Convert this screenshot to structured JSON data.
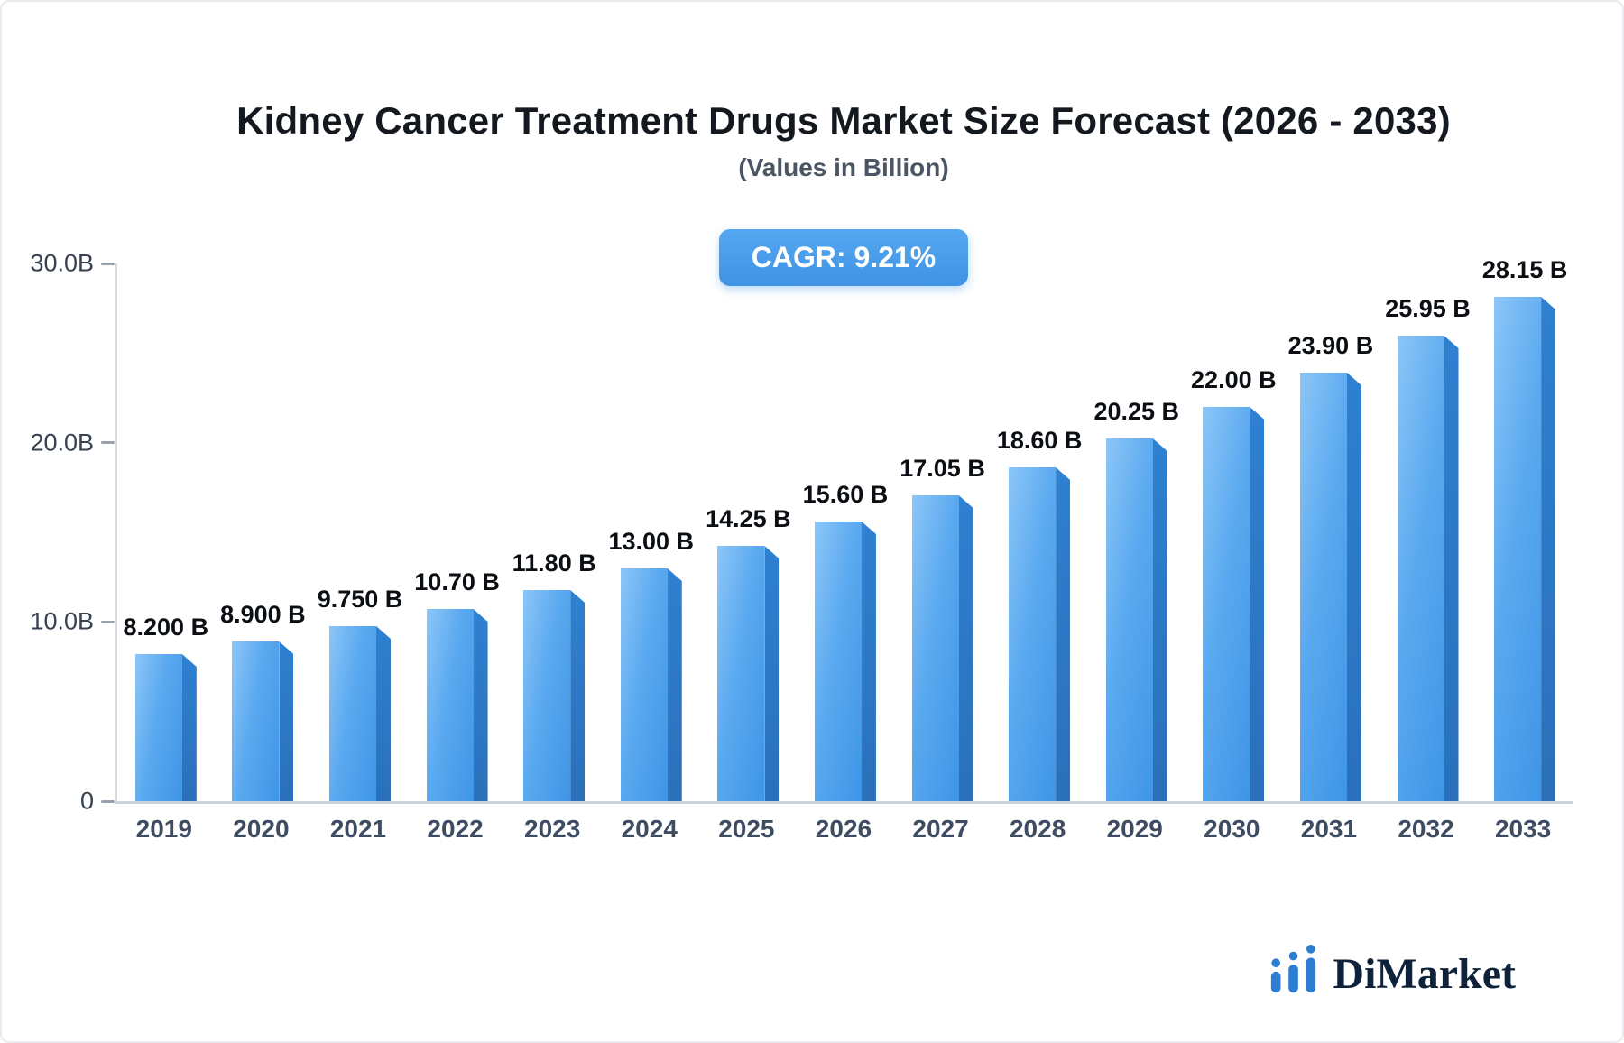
{
  "title": "Kidney Cancer Treatment Drugs Market Size Forecast (2026 - 2033)",
  "subtitle": "(Values in Billion)",
  "cagr_badge": "CAGR: 9.21%",
  "brand": {
    "name": "DiMarket"
  },
  "colors": {
    "bar": "#4199ea",
    "bar_side": "#2a76c4",
    "badge": "#4a9dea",
    "axis": "#cdd2d8",
    "text": "#14181f",
    "brand_blue": "#2d7dd2",
    "brand_text": "#0e2239"
  },
  "chart_data": {
    "type": "bar",
    "title": "Kidney Cancer Treatment Drugs Market Size Forecast (2026 - 2033)",
    "subtitle": "(Values in Billion)",
    "xlabel": "",
    "ylabel": "",
    "ylim": [
      0,
      30
    ],
    "grid": false,
    "legend": false,
    "categories": [
      "2019",
      "2020",
      "2021",
      "2022",
      "2023",
      "2024",
      "2025",
      "2026",
      "2027",
      "2028",
      "2029",
      "2030",
      "2031",
      "2032",
      "2033"
    ],
    "values": [
      8.2,
      8.9,
      9.75,
      10.7,
      11.8,
      13.0,
      14.25,
      15.6,
      17.05,
      18.6,
      20.25,
      22.0,
      23.9,
      25.95,
      28.15
    ],
    "labels": [
      "8.200 B",
      "8.900 B",
      "9.750 B",
      "10.70 B",
      "11.80 B",
      "13.00 B",
      "14.25 B",
      "15.60 B",
      "17.05 B",
      "18.60 B",
      "20.25 B",
      "22.00 B",
      "23.90 B",
      "25.95 B",
      "28.15 B"
    ],
    "yticks": [
      {
        "value": 0,
        "label": "0"
      },
      {
        "value": 10,
        "label": "10.0B"
      },
      {
        "value": 20,
        "label": "20.0B"
      },
      {
        "value": 30,
        "label": "30.0B"
      }
    ]
  }
}
